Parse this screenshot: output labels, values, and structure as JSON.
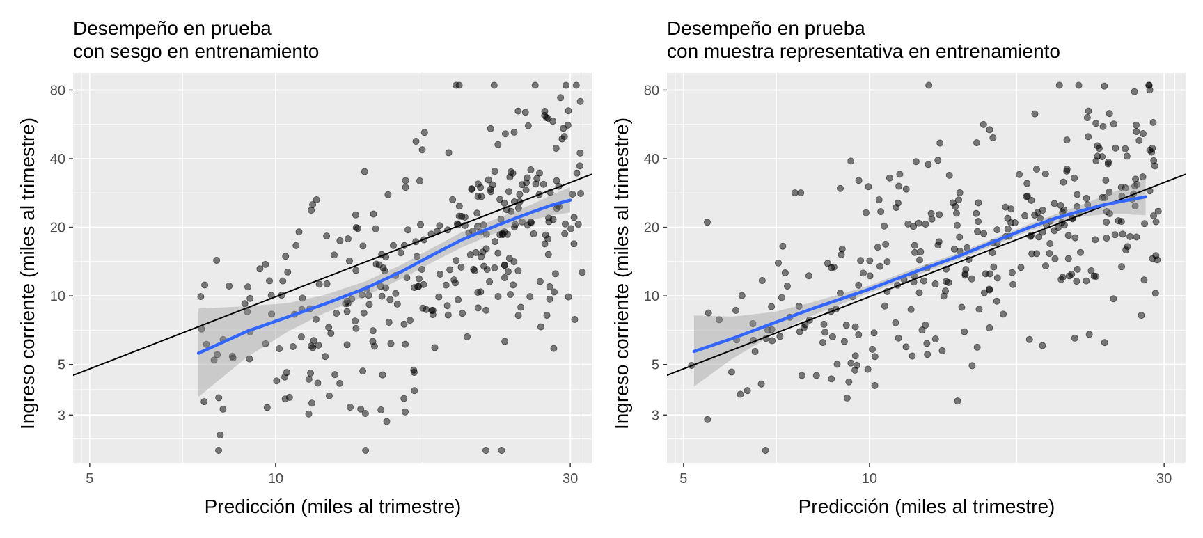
{
  "chart_data": [
    {
      "type": "scatter",
      "title_line1": "Desempeño en prueba",
      "title_line2": "con sesgo en entrenamiento",
      "xlabel": "Predicción (miles al trimestre)",
      "ylabel": "Ingreso corriente (miles al trimestre)",
      "x_scale": "log",
      "y_scale": "log",
      "xlim": [
        4.7,
        32.5
      ],
      "ylim": [
        1.85,
        95
      ],
      "x_ticks": [
        5,
        10,
        30
      ],
      "y_ticks": [
        3,
        5,
        10,
        20,
        40,
        80
      ],
      "x_tick_labels": [
        "5",
        "10",
        "30"
      ],
      "y_tick_labels": [
        "3",
        "5",
        "10",
        "20",
        "40",
        "80"
      ],
      "grid": true,
      "reference_line": {
        "x": [
          4.7,
          32.5
        ],
        "y": [
          4.48,
          34.2
        ],
        "color": "#000000"
      },
      "smooth": {
        "color": "#3366FF",
        "x": [
          7.5,
          9.0,
          10.5,
          12.0,
          14.0,
          16.0,
          18.0,
          20.0,
          22.0,
          24.0,
          26.0,
          28.0,
          30.0
        ],
        "y": [
          5.6,
          7.0,
          8.1,
          9.2,
          10.8,
          12.8,
          15.2,
          17.6,
          19.6,
          21.5,
          23.3,
          25.0,
          26.3
        ],
        "ylow": [
          3.6,
          5.4,
          7.0,
          8.4,
          10.0,
          11.9,
          14.1,
          16.3,
          18.2,
          20.0,
          21.5,
          22.6,
          23.2
        ],
        "yhigh": [
          8.8,
          9.0,
          9.3,
          10.1,
          11.6,
          13.7,
          16.3,
          19.0,
          21.0,
          23.1,
          25.2,
          27.8,
          30.0
        ]
      },
      "points": {
        "color": "#000000",
        "opacity": 0.5
      }
    },
    {
      "type": "scatter",
      "title_line1": "Desempeño en prueba",
      "title_line2": "con muestra representativa en entrenamiento",
      "xlabel": "Predicción (miles al trimestre)",
      "ylabel": "Ingreso corriente (miles al trimestre)",
      "x_scale": "log",
      "y_scale": "log",
      "xlim": [
        4.7,
        32.5
      ],
      "ylim": [
        1.85,
        95
      ],
      "x_ticks": [
        5,
        10,
        30
      ],
      "y_ticks": [
        3,
        5,
        10,
        20,
        40,
        80
      ],
      "x_tick_labels": [
        "5",
        "10",
        "30"
      ],
      "y_tick_labels": [
        "3",
        "5",
        "10",
        "20",
        "40",
        "80"
      ],
      "grid": true,
      "reference_line": {
        "x": [
          4.7,
          32.5
        ],
        "y": [
          4.48,
          34.2
        ],
        "color": "#000000"
      },
      "smooth": {
        "color": "#3366FF",
        "x": [
          5.2,
          6.0,
          7.0,
          8.0,
          9.0,
          10.0,
          12.0,
          14.0,
          16.0,
          18.0,
          20.0,
          22.0,
          24.0,
          26.0,
          28.0
        ],
        "y": [
          5.7,
          6.5,
          7.6,
          8.7,
          9.7,
          10.7,
          12.9,
          15.0,
          17.4,
          19.8,
          21.9,
          23.6,
          25.1,
          26.2,
          27.2
        ],
        "ylow": [
          4.0,
          5.3,
          6.8,
          8.1,
          9.2,
          10.3,
          12.4,
          14.5,
          16.8,
          19.1,
          21.0,
          22.3,
          22.8,
          22.8,
          22.6
        ],
        "yhigh": [
          8.2,
          8.1,
          8.5,
          9.3,
          10.2,
          11.1,
          13.4,
          15.5,
          18.0,
          20.5,
          22.8,
          25.0,
          27.5,
          30.0,
          32.9
        ]
      },
      "points": {
        "color": "#000000",
        "opacity": 0.5
      }
    }
  ]
}
